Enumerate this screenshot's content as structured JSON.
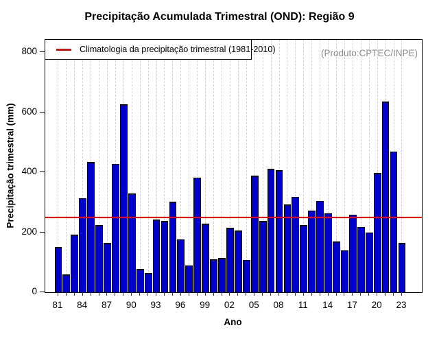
{
  "header": {
    "title": "Precipitação Acumulada Trimestral (OND): Região 9"
  },
  "legend": {
    "label": "Climatologia da precipitação trimestral (1981-2010)"
  },
  "annotations": {
    "source": "(Produto:CPTEC/INPE)"
  },
  "colors": {
    "bar_fill": "#0000CD",
    "bar_border": "#000000",
    "climatology_line": "#FF0000",
    "source_text": "#8C8C8C",
    "grid": "#D2D2D2"
  },
  "chart_data": {
    "type": "bar",
    "title": "Precipitação Acumulada Trimestral (OND): Região 9",
    "xlabel": "Ano",
    "ylabel": "Precipitação trimestral (mm)",
    "ylim": [
      0,
      800
    ],
    "yticks": [
      0,
      200,
      400,
      600,
      800
    ],
    "grid": "vertical-dashed",
    "legend_position": "top-left",
    "categories": [
      "1981",
      "1982",
      "1983",
      "1984",
      "1985",
      "1986",
      "1987",
      "1988",
      "1989",
      "1990",
      "1991",
      "1992",
      "1993",
      "1994",
      "1995",
      "1996",
      "1997",
      "1998",
      "1999",
      "2000",
      "2001",
      "2002",
      "2003",
      "2004",
      "2005",
      "2006",
      "2007",
      "2008",
      "2009",
      "2010",
      "2011",
      "2012",
      "2013",
      "2014",
      "2015",
      "2016",
      "2017",
      "2018",
      "2019",
      "2020",
      "2021",
      "2022",
      "2023"
    ],
    "xtick_labels": [
      "81",
      "84",
      "87",
      "90",
      "93",
      "96",
      "99",
      "02",
      "05",
      "08",
      "11",
      "14",
      "17",
      "20",
      "23"
    ],
    "values": [
      150,
      59,
      192,
      313,
      435,
      224,
      165,
      428,
      628,
      330,
      78,
      64,
      242,
      238,
      303,
      176,
      89,
      381,
      228,
      111,
      114,
      214,
      207,
      107,
      390,
      237,
      413,
      408,
      293,
      318,
      225,
      272,
      304,
      263,
      169,
      139,
      258,
      218,
      200,
      398,
      637,
      468,
      165
    ],
    "climatology_value": 250
  }
}
